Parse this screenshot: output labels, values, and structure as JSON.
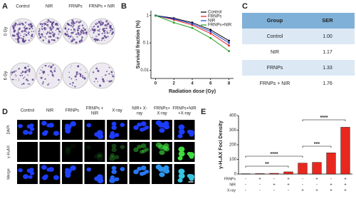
{
  "panel_labels": [
    "A",
    "B",
    "C",
    "D",
    "E"
  ],
  "panel_a": {
    "columns": [
      "Control",
      "NIR",
      "FRNPs",
      "FRNPs + NIR"
    ],
    "rows": [
      "0 Gy",
      "6 Gy"
    ]
  },
  "table": {
    "header": [
      "Group",
      "SER"
    ],
    "rows": [
      [
        "Control",
        "1.00"
      ],
      [
        "NIR",
        "1.17"
      ],
      [
        "FRNPs",
        "1.33"
      ],
      [
        "FRNPs + NIR",
        "1.76"
      ]
    ]
  },
  "panel_d": {
    "columns": [
      [
        "Control"
      ],
      [
        "NIR"
      ],
      [
        "FRNPs"
      ],
      [
        "FRNPs +",
        "NIR"
      ],
      [
        "X-ray"
      ],
      [
        "NIR+ X-",
        "ray"
      ],
      [
        "FRNPs+",
        "X-ray"
      ],
      [
        "FRNPs+NIR",
        "+X-ray"
      ]
    ],
    "rows": [
      "DAPI",
      "γ-H₂AX",
      "Merge"
    ]
  },
  "chart_data": [
    {
      "type": "line",
      "xlabel": "Radiation dose (Gy)",
      "ylabel": "Survival fraction (%)",
      "x": [
        0,
        2,
        4,
        6,
        8
      ],
      "xlim": [
        -0.5,
        8.5
      ],
      "xticks": [
        0,
        2,
        4,
        6,
        8
      ],
      "ylim": [
        0.005,
        1.5
      ],
      "yticks": [
        0.01,
        0.1,
        1
      ],
      "log_y": true,
      "legend": "upper right",
      "series": [
        {
          "name": "Control",
          "color": "#000000",
          "values": [
            1,
            0.8,
            0.55,
            0.3,
            0.12
          ]
        },
        {
          "name": "FRNPs",
          "color": "#e02020",
          "values": [
            1,
            0.7,
            0.45,
            0.22,
            0.08
          ]
        },
        {
          "name": "NIR",
          "color": "#2040d0",
          "values": [
            1,
            0.75,
            0.5,
            0.26,
            0.1
          ]
        },
        {
          "name": "FRNPs+NIR",
          "color": "#20a020",
          "values": [
            1,
            0.55,
            0.35,
            0.15,
            0.05
          ]
        }
      ]
    },
    {
      "type": "bar",
      "ylabel": "γ-H₂AX Foci Density",
      "categories": [
        null,
        null,
        null,
        null,
        null,
        null,
        null,
        null
      ],
      "values": [
        2,
        3,
        5,
        15,
        75,
        80,
        145,
        320
      ],
      "color": "#e8281e",
      "ylim": [
        0,
        400
      ],
      "yticks": [
        0,
        100,
        200,
        300,
        400
      ],
      "conditions": [
        {
          "name": "FRNPs",
          "signs": [
            "-",
            "+",
            "-",
            "+",
            "-",
            "+",
            "-",
            "+"
          ]
        },
        {
          "name": "NIR",
          "signs": [
            "-",
            "-",
            "+",
            "+",
            "-",
            "-",
            "+",
            "+"
          ]
        },
        {
          "name": "X-ray",
          "signs": [
            "-",
            "-",
            "-",
            "-",
            "+",
            "+",
            "+",
            "+"
          ]
        }
      ],
      "annotations": [
        "**",
        "****",
        "***",
        "****"
      ]
    }
  ]
}
